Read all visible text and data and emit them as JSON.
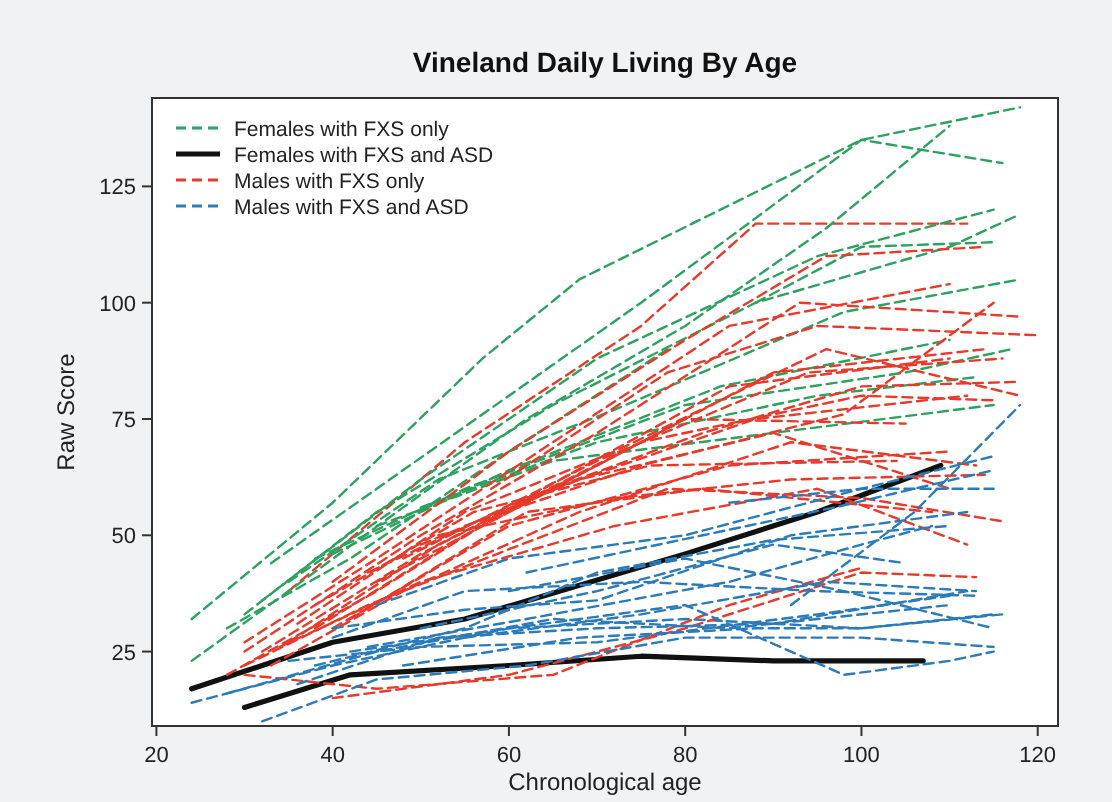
{
  "chart_data": {
    "type": "line",
    "title": "Vineland Daily Living By Age",
    "xlabel": "Chronological age",
    "ylabel": "Raw Score",
    "xlim": [
      19.5,
      122.3
    ],
    "ylim": [
      9,
      144
    ],
    "xticks": [
      20,
      40,
      60,
      80,
      100,
      120
    ],
    "yticks": [
      25,
      50,
      75,
      100,
      125
    ],
    "grid": false,
    "legend": "top left",
    "marker": "none",
    "series": [
      {
        "name": "Females with FXS only",
        "color": "#2ca25f",
        "line_style": "dashed",
        "x": [
          24,
          40,
          57,
          68,
          100,
          118
        ],
        "values": [
          32,
          57,
          88,
          105,
          135,
          142
        ]
      },
      {
        "name": "Females with FXS and ASD",
        "color": "#111111",
        "line_style": "solid",
        "x": [
          24,
          32,
          40,
          55,
          64,
          80,
          95,
          109
        ],
        "values": [
          17,
          22,
          27,
          32,
          37,
          46,
          55,
          65
        ]
      },
      {
        "name": "Males with FXS only",
        "color": "#e8392a",
        "line_style": "dashed",
        "x": [
          35,
          55,
          75,
          88,
          112
        ],
        "values": [
          38,
          70,
          95,
          117,
          117
        ]
      },
      {
        "name": "Males with FXS and ASD",
        "color": "#2b7bba",
        "line_style": "dashed",
        "x": [
          24,
          40,
          60,
          80,
          100,
          115
        ],
        "values": [
          14,
          22,
          30,
          32,
          30,
          33
        ]
      },
      {
        "color": "#111111",
        "line_style": "solid",
        "x": [
          30,
          42,
          60,
          75,
          90,
          107
        ],
        "values": [
          13,
          20,
          22,
          24,
          23,
          23
        ]
      },
      {
        "color": "#2ca25f",
        "line_style": "dashed",
        "x": [
          24,
          35,
          48,
          62,
          80,
          96,
          110
        ],
        "values": [
          23,
          38,
          56,
          75,
          95,
          116,
          138
        ]
      },
      {
        "color": "#2ca25f",
        "line_style": "dashed",
        "x": [
          33,
          45,
          60,
          75,
          100,
          116
        ],
        "values": [
          44,
          60,
          80,
          100,
          135,
          130
        ]
      },
      {
        "color": "#2ca25f",
        "line_style": "dashed",
        "x": [
          30,
          45,
          65,
          88,
          110,
          118
        ],
        "values": [
          33,
          55,
          78,
          100,
          112,
          119
        ]
      },
      {
        "color": "#2ca25f",
        "line_style": "dashed",
        "x": [
          32,
          50,
          70,
          95,
          115
        ],
        "values": [
          36,
          62,
          88,
          110,
          120
        ]
      },
      {
        "color": "#2ca25f",
        "line_style": "dashed",
        "x": [
          35,
          52,
          72,
          98,
          118
        ],
        "values": [
          40,
          62,
          77,
          98,
          105
        ]
      },
      {
        "color": "#2ca25f",
        "line_style": "dashed",
        "x": [
          38,
          55,
          80,
          105,
          117
        ],
        "values": [
          45,
          60,
          78,
          85,
          90
        ]
      },
      {
        "color": "#2ca25f",
        "line_style": "dashed",
        "x": [
          40,
          60,
          84,
          110
        ],
        "values": [
          46,
          64,
          82,
          92
        ]
      },
      {
        "color": "#2ca25f",
        "line_style": "dashed",
        "x": [
          45,
          65,
          90,
          115
        ],
        "values": [
          52,
          66,
          72,
          78
        ]
      },
      {
        "color": "#2ca25f",
        "line_style": "dashed",
        "x": [
          28,
          42,
          60,
          78
        ],
        "values": [
          30,
          45,
          68,
          90
        ]
      },
      {
        "color": "#2ca25f",
        "line_style": "dashed",
        "x": [
          50,
          70,
          95,
          113
        ],
        "values": [
          56,
          70,
          80,
          84
        ]
      },
      {
        "color": "#2ca25f",
        "line_style": "dashed",
        "x": [
          88,
          100,
          115
        ],
        "values": [
          100,
          112,
          113
        ]
      },
      {
        "color": "#e8392a",
        "line_style": "dashed",
        "x": [
          40,
          60,
          80,
          96,
          114
        ],
        "values": [
          40,
          68,
          92,
          110,
          112
        ]
      },
      {
        "color": "#e8392a",
        "line_style": "dashed",
        "x": [
          30,
          45,
          65,
          85,
          110
        ],
        "values": [
          27,
          45,
          70,
          95,
          104
        ]
      },
      {
        "color": "#e8392a",
        "line_style": "dashed",
        "x": [
          30,
          50,
          70,
          93,
          118
        ],
        "values": [
          25,
          50,
          72,
          100,
          97
        ]
      },
      {
        "color": "#e8392a",
        "line_style": "dashed",
        "x": [
          32,
          50,
          70,
          90,
          114
        ],
        "values": [
          25,
          46,
          65,
          85,
          90
        ]
      },
      {
        "color": "#e8392a",
        "line_style": "dashed",
        "x": [
          28,
          45,
          62,
          85,
          110
        ],
        "values": [
          20,
          38,
          58,
          82,
          88
        ]
      },
      {
        "color": "#e8392a",
        "line_style": "dashed",
        "x": [
          35,
          52,
          75,
          100,
          115
        ],
        "values": [
          27,
          48,
          70,
          80,
          79
        ]
      },
      {
        "color": "#e8392a",
        "line_style": "dashed",
        "x": [
          38,
          55,
          80,
          105
        ],
        "values": [
          30,
          50,
          75,
          74
        ]
      },
      {
        "color": "#e8392a",
        "line_style": "dashed",
        "x": [
          40,
          60,
          85,
          110
        ],
        "values": [
          30,
          52,
          65,
          68
        ]
      },
      {
        "color": "#e8392a",
        "line_style": "dashed",
        "x": [
          33,
          48,
          68,
          92,
          113
        ],
        "values": [
          22,
          38,
          55,
          70,
          65
        ]
      },
      {
        "color": "#e8392a",
        "line_style": "dashed",
        "x": [
          42,
          62,
          82,
          108
        ],
        "values": [
          32,
          55,
          60,
          55
        ]
      },
      {
        "color": "#e8392a",
        "line_style": "dashed",
        "x": [
          30,
          44,
          60,
          78,
          100,
          116
        ],
        "values": [
          22,
          35,
          47,
          60,
          58,
          53
        ]
      },
      {
        "color": "#e8392a",
        "line_style": "dashed",
        "x": [
          45,
          65,
          88,
          112
        ],
        "values": [
          40,
          60,
          75,
          80
        ]
      },
      {
        "color": "#e8392a",
        "line_style": "dashed",
        "x": [
          36,
          55,
          72,
          96,
          118
        ],
        "values": [
          31,
          55,
          68,
          90,
          80
        ]
      },
      {
        "color": "#e8392a",
        "line_style": "dashed",
        "x": [
          50,
          68,
          90,
          110
        ],
        "values": [
          48,
          62,
          72,
          60
        ]
      },
      {
        "color": "#e8392a",
        "line_style": "dashed",
        "x": [
          40,
          60,
          80,
          100,
          113
        ],
        "values": [
          15,
          20,
          30,
          42,
          41
        ]
      },
      {
        "color": "#e8392a",
        "line_style": "dashed",
        "x": [
          30,
          45,
          65,
          85,
          100
        ],
        "values": [
          20,
          17,
          20,
          35,
          43
        ]
      },
      {
        "color": "#e8392a",
        "line_style": "dashed",
        "x": [
          48,
          70,
          94,
          116
        ],
        "values": [
          45,
          66,
          85,
          88
        ]
      },
      {
        "color": "#e8392a",
        "line_style": "dashed",
        "x": [
          34,
          50,
          72,
          95,
          112
        ],
        "values": [
          26,
          40,
          52,
          60,
          48
        ]
      },
      {
        "color": "#e8392a",
        "line_style": "dashed",
        "x": [
          55,
          75,
          98,
          115
        ],
        "values": [
          52,
          65,
          76,
          100
        ]
      },
      {
        "color": "#e8392a",
        "line_style": "dashed",
        "x": [
          58,
          78,
          95,
          120
        ],
        "values": [
          60,
          85,
          95,
          93
        ]
      },
      {
        "color": "#e8392a",
        "line_style": "dashed",
        "x": [
          44,
          62,
          82,
          100,
          118
        ],
        "values": [
          42,
          58,
          72,
          82,
          83
        ]
      },
      {
        "color": "#e8392a",
        "line_style": "dashed",
        "x": [
          38,
          56,
          76,
          104
        ],
        "values": [
          35,
          55,
          65,
          66
        ]
      },
      {
        "color": "#e8392a",
        "line_style": "dashed",
        "x": [
          52,
          72,
          92,
          114
        ],
        "values": [
          50,
          58,
          62,
          63
        ]
      },
      {
        "color": "#2b7bba",
        "line_style": "dashed",
        "x": [
          28,
          45,
          65,
          85,
          110
        ],
        "values": [
          16,
          25,
          32,
          30,
          35
        ]
      },
      {
        "color": "#2b7bba",
        "line_style": "dashed",
        "x": [
          32,
          45,
          62,
          80,
          100,
          115
        ],
        "values": [
          10,
          19,
          22,
          28,
          28,
          26
        ]
      },
      {
        "color": "#2b7bba",
        "line_style": "dashed",
        "x": [
          36,
          52,
          70,
          90,
          112
        ],
        "values": [
          18,
          28,
          30,
          31,
          38
        ]
      },
      {
        "color": "#2b7bba",
        "line_style": "dashed",
        "x": [
          40,
          55,
          75,
          95,
          113
        ],
        "values": [
          28,
          38,
          40,
          38,
          37
        ]
      },
      {
        "color": "#2b7bba",
        "line_style": "dashed",
        "x": [
          42,
          60,
          80,
          98,
          110,
          115
        ],
        "values": [
          25,
          30,
          35,
          20,
          23,
          25
        ]
      },
      {
        "color": "#2b7bba",
        "line_style": "dashed",
        "x": [
          38,
          55,
          70,
          90,
          110
        ],
        "values": [
          22,
          30,
          42,
          49,
          52
        ]
      },
      {
        "color": "#2b7bba",
        "line_style": "dashed",
        "x": [
          45,
          60,
          80,
          100,
          115
        ],
        "values": [
          35,
          45,
          50,
          60,
          67
        ]
      },
      {
        "color": "#2b7bba",
        "line_style": "dashed",
        "x": [
          50,
          70,
          90,
          105
        ],
        "values": [
          30,
          38,
          48,
          44
        ]
      },
      {
        "color": "#2b7bba",
        "line_style": "dashed",
        "x": [
          55,
          75,
          96,
          113
        ],
        "values": [
          28,
          33,
          40,
          38
        ]
      },
      {
        "color": "#2b7bba",
        "line_style": "dashed",
        "x": [
          48,
          68,
          88,
          100,
          116
        ],
        "values": [
          22,
          28,
          30,
          30,
          33
        ]
      },
      {
        "color": "#2b7bba",
        "line_style": "dashed",
        "x": [
          40,
          55,
          70,
          92,
          112
        ],
        "values": [
          30,
          34,
          36,
          50,
          55
        ]
      },
      {
        "color": "#2b7bba",
        "line_style": "dashed",
        "x": [
          60,
          80,
          98,
          115
        ],
        "values": [
          38,
          45,
          38,
          30
        ]
      },
      {
        "color": "#2b7bba",
        "line_style": "dashed",
        "x": [
          85,
          100,
          115
        ],
        "values": [
          57,
          60,
          60
        ]
      },
      {
        "color": "#2b7bba",
        "line_style": "dashed",
        "x": [
          92,
          106,
          118
        ],
        "values": [
          35,
          55,
          78
        ]
      },
      {
        "color": "#2b7bba",
        "line_style": "dashed",
        "x": [
          62,
          82,
          97,
          115
        ],
        "values": [
          42,
          50,
          56,
          64
        ]
      },
      {
        "color": "#2b7bba",
        "line_style": "dashed",
        "x": [
          35,
          50,
          70,
          95,
          110
        ],
        "values": [
          23,
          26,
          27,
          33,
          37
        ]
      },
      {
        "color": "#2b7bba",
        "line_style": "dashed",
        "x": [
          44,
          62,
          85,
          100,
          108
        ],
        "values": [
          26,
          32,
          40,
          48,
          52
        ]
      }
    ]
  }
}
